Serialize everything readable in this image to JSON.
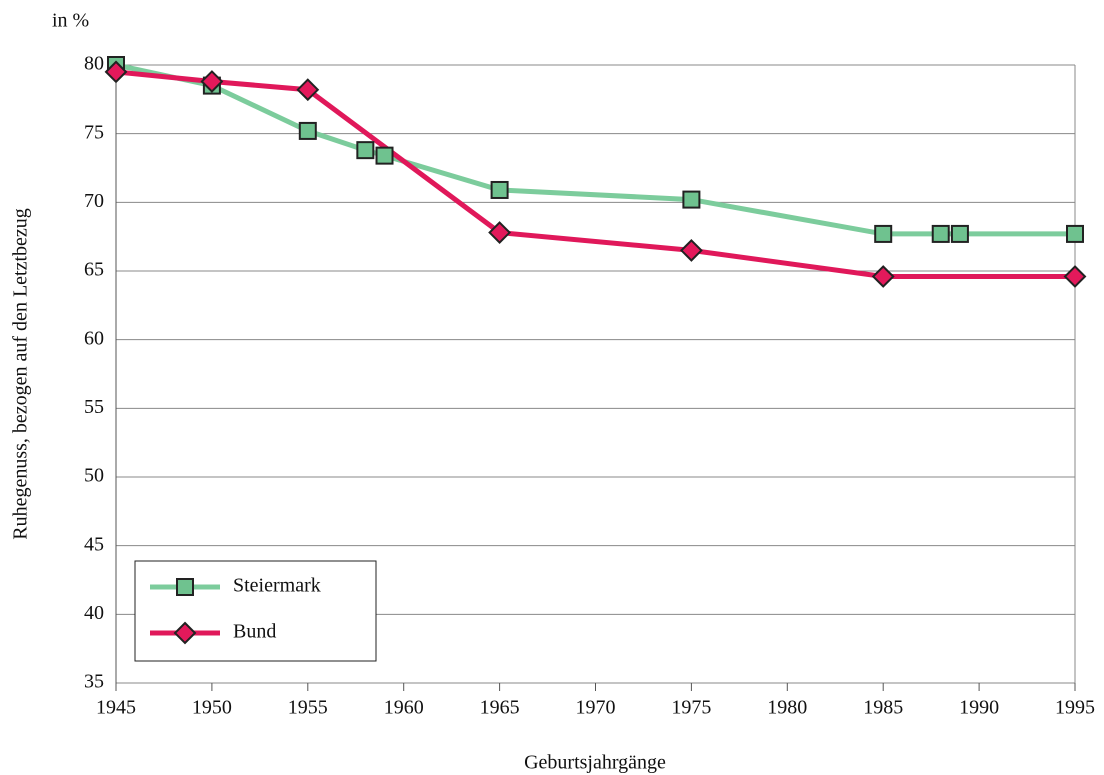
{
  "chart_data": {
    "type": "line",
    "unit_label": "in %",
    "xlabel": "Geburtsjahrgänge",
    "ylabel": "Ruhegenuss, bezogen auf den Letztbezug",
    "series": [
      {
        "name": "Steiermark",
        "color": "#7ccc9c",
        "marker_color": "#6fc28f",
        "marker": "square",
        "x": [
          1945,
          1950,
          1955,
          1958,
          1959,
          1965,
          1975,
          1985,
          1988,
          1989,
          1995
        ],
        "values": [
          80,
          78.5,
          75.2,
          73.8,
          73.4,
          70.9,
          70.2,
          67.7,
          67.7,
          67.7,
          67.7
        ]
      },
      {
        "name": "Bund",
        "color": "#e0185a",
        "marker_color": "#e3195b",
        "marker": "diamond",
        "x": [
          1945,
          1950,
          1955,
          1965,
          1975,
          1985,
          1995
        ],
        "values": [
          79.5,
          78.8,
          78.2,
          67.8,
          66.5,
          64.6,
          64.6
        ]
      }
    ],
    "xlim": [
      1945,
      1995
    ],
    "xticks": [
      1945,
      1950,
      1955,
      1960,
      1965,
      1970,
      1975,
      1980,
      1985,
      1990,
      1995
    ],
    "ylim": [
      35,
      80
    ],
    "yticks": [
      35,
      40,
      45,
      50,
      55,
      60,
      65,
      70,
      75,
      80
    ],
    "grid": true,
    "legend": "lower left"
  }
}
